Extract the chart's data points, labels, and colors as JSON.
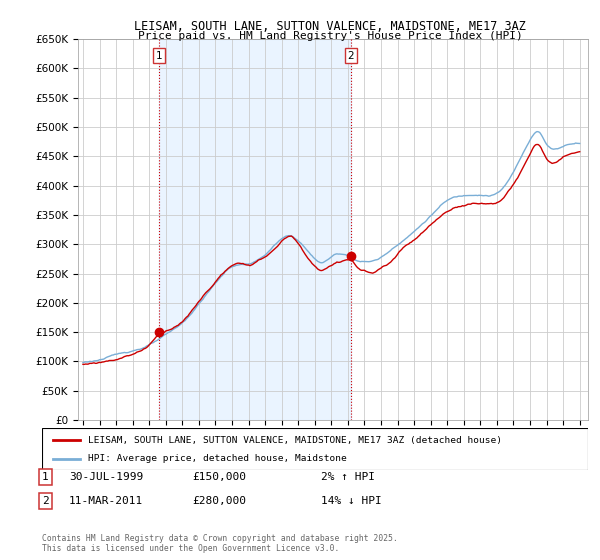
{
  "title": "LEISAM, SOUTH LANE, SUTTON VALENCE, MAIDSTONE, ME17 3AZ",
  "subtitle": "Price paid vs. HM Land Registry's House Price Index (HPI)",
  "ylabel_ticks": [
    "£0",
    "£50K",
    "£100K",
    "£150K",
    "£200K",
    "£250K",
    "£300K",
    "£350K",
    "£400K",
    "£450K",
    "£500K",
    "£550K",
    "£600K",
    "£650K"
  ],
  "ylim": [
    0,
    650000
  ],
  "xlim_start": 1994.7,
  "xlim_end": 2025.5,
  "sale1_x": 1999.57,
  "sale1_y": 150000,
  "sale2_x": 2011.19,
  "sale2_y": 280000,
  "red_color": "#cc0000",
  "blue_color": "#7aaed6",
  "blue_fill": "#ddeeff",
  "legend_label_red": "LEISAM, SOUTH LANE, SUTTON VALENCE, MAIDSTONE, ME17 3AZ (detached house)",
  "legend_label_blue": "HPI: Average price, detached house, Maidstone",
  "footnote": "Contains HM Land Registry data © Crown copyright and database right 2025.\nThis data is licensed under the Open Government Licence v3.0.",
  "background_color": "#ffffff",
  "grid_color": "#cccccc",
  "shade_color": "#ddeeff"
}
